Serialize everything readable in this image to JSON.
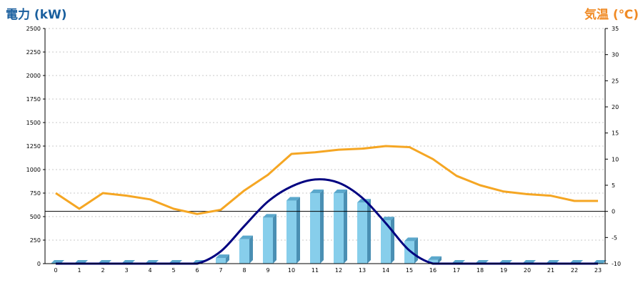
{
  "header": {
    "left_title": "電力 (kW)",
    "right_title": "気温 (℃)"
  },
  "chart_data": {
    "type": "bar",
    "categories": [
      "0",
      "1",
      "2",
      "3",
      "4",
      "5",
      "6",
      "7",
      "8",
      "9",
      "10",
      "11",
      "12",
      "13",
      "14",
      "15",
      "16",
      "17",
      "18",
      "19",
      "20",
      "21",
      "22",
      "23"
    ],
    "series": [
      {
        "axis": "left",
        "type": "bar",
        "color": "#87ceeb",
        "values": [
          0,
          0,
          0,
          0,
          0,
          0,
          0,
          60,
          260,
          490,
          670,
          750,
          750,
          650,
          460,
          240,
          40,
          0,
          0,
          0,
          0,
          0,
          0,
          0
        ]
      },
      {
        "axis": "left",
        "type": "line",
        "color": "#000080",
        "values": [
          0,
          0,
          0,
          0,
          0,
          0,
          0,
          130,
          400,
          660,
          820,
          895,
          860,
          700,
          430,
          140,
          0,
          0,
          0,
          0,
          0,
          0,
          0,
          0
        ]
      },
      {
        "axis": "right",
        "type": "line",
        "color": "#f5a623",
        "values": [
          3.5,
          0.5,
          3.5,
          3.0,
          2.3,
          0.5,
          -0.5,
          0.3,
          4.0,
          7.0,
          11.0,
          11.3,
          11.8,
          12.0,
          12.5,
          12.3,
          10.0,
          6.8,
          5.0,
          3.8,
          3.3,
          3.0,
          2.0,
          2.0
        ]
      }
    ],
    "yaxis_left": {
      "ticks": [
        "0",
        "250",
        "500",
        "750",
        "1000",
        "1250",
        "1500",
        "1750",
        "2000",
        "2250",
        "2500"
      ],
      "ylim": [
        0,
        2500
      ]
    },
    "yaxis_right": {
      "ticks": [
        "-10",
        "-5",
        "0",
        "5",
        "10",
        "15",
        "20",
        "25",
        "30",
        "35"
      ],
      "ylim": [
        -10,
        35
      ]
    },
    "grid": true
  }
}
